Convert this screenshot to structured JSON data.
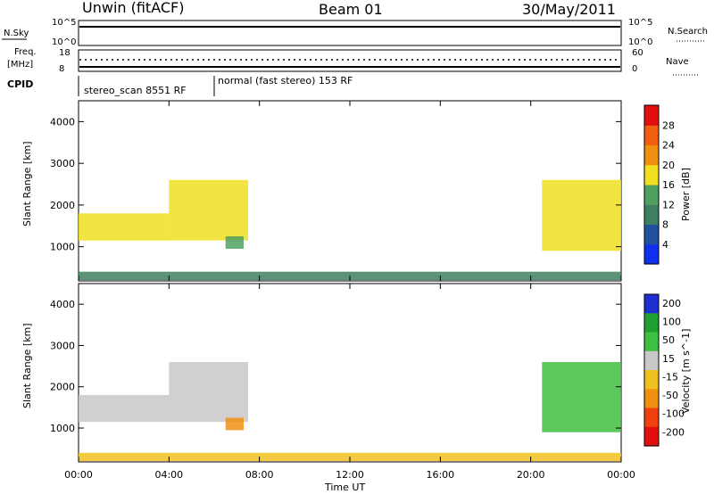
{
  "header": {
    "station": "Unwin (fitACF)",
    "beam": "Beam 01",
    "date": "30/May/2011"
  },
  "status": {
    "nsky_label": "N.Sky",
    "nsearch_label": "N.Search",
    "freq_label_line1": "Freq.",
    "freq_label_line2": "[MHz]",
    "nave_label": "Nave",
    "cpid_label": "CPID",
    "nsky_ticks": [
      "10^5",
      "10^0"
    ],
    "nsearch_ticks": [
      "10^5",
      "10^0"
    ],
    "freq_ticks": [
      "18",
      "8"
    ],
    "nave_ticks": [
      "60",
      "0"
    ],
    "cpid_segments": [
      {
        "label": "stereo_scan 8551 RF",
        "start": "00:00",
        "end": "06:00"
      },
      {
        "label": "normal (fast stereo) 153 RF",
        "start": "06:00",
        "end": "24:00"
      }
    ]
  },
  "xaxis": {
    "label": "Time UT",
    "ticks": [
      "00:00",
      "04:00",
      "08:00",
      "12:00",
      "16:00",
      "20:00",
      "00:00"
    ]
  },
  "yaxis": {
    "label": "Slant Range [km]",
    "ticks": [
      "1000",
      "2000",
      "3000",
      "4000"
    ]
  },
  "colors": {
    "power": [
      "#1030f0",
      "#2050a0",
      "#408060",
      "#50a060",
      "#f0e020",
      "#f09010",
      "#f06010",
      "#e01010"
    ],
    "velocity": [
      "#2030d0",
      "#20a030",
      "#40c040",
      "#c8c8c8",
      "#f0c020",
      "#f09010",
      "#f04010",
      "#e01010"
    ]
  },
  "chart_data": [
    {
      "type": "heatmap",
      "title": "",
      "xlabel": "Time UT",
      "ylabel": "Slant Range [km]",
      "xlim": [
        0,
        24
      ],
      "ylim": [
        180,
        4500
      ],
      "colorbar": {
        "label": "Power [dB]",
        "ticks": [
          "4",
          "8",
          "12",
          "16",
          "20",
          "24",
          "28"
        ]
      },
      "regions": [
        {
          "t_start": 0.0,
          "t_end": 4.0,
          "range_low": 1150,
          "range_high": 1800,
          "value_db": 18
        },
        {
          "t_start": 4.0,
          "t_end": 7.5,
          "range_low": 1150,
          "range_high": 2600,
          "value_db": 16
        },
        {
          "t_start": 6.5,
          "t_end": 7.3,
          "range_low": 950,
          "range_high": 1250,
          "value_db": 12
        },
        {
          "t_start": 20.5,
          "t_end": 24.0,
          "range_low": 900,
          "range_high": 2600,
          "value_db": 16
        },
        {
          "t_start": 0.0,
          "t_end": 24.0,
          "range_low": 200,
          "range_high": 400,
          "value_db": 8
        }
      ]
    },
    {
      "type": "heatmap",
      "title": "",
      "xlabel": "Time UT",
      "ylabel": "Slant Range [km]",
      "xlim": [
        0,
        24
      ],
      "ylim": [
        180,
        4500
      ],
      "colorbar": {
        "label": "Velocity [m s^-1]",
        "ticks": [
          "200",
          "100",
          "50",
          "15",
          "-15",
          "-50",
          "-100",
          "-200"
        ]
      },
      "regions": [
        {
          "t_start": 0.0,
          "t_end": 4.0,
          "range_low": 1150,
          "range_high": 1800,
          "velocity": 0
        },
        {
          "t_start": 4.0,
          "t_end": 7.5,
          "range_low": 1150,
          "range_high": 2600,
          "velocity": 0
        },
        {
          "t_start": 6.5,
          "t_end": 7.3,
          "range_low": 950,
          "range_high": 1250,
          "velocity": -60
        },
        {
          "t_start": 20.5,
          "t_end": 24.0,
          "range_low": 900,
          "range_high": 2600,
          "velocity": 20
        },
        {
          "t_start": 0.0,
          "t_end": 24.0,
          "range_low": 200,
          "range_high": 400,
          "velocity": -20
        }
      ]
    }
  ]
}
